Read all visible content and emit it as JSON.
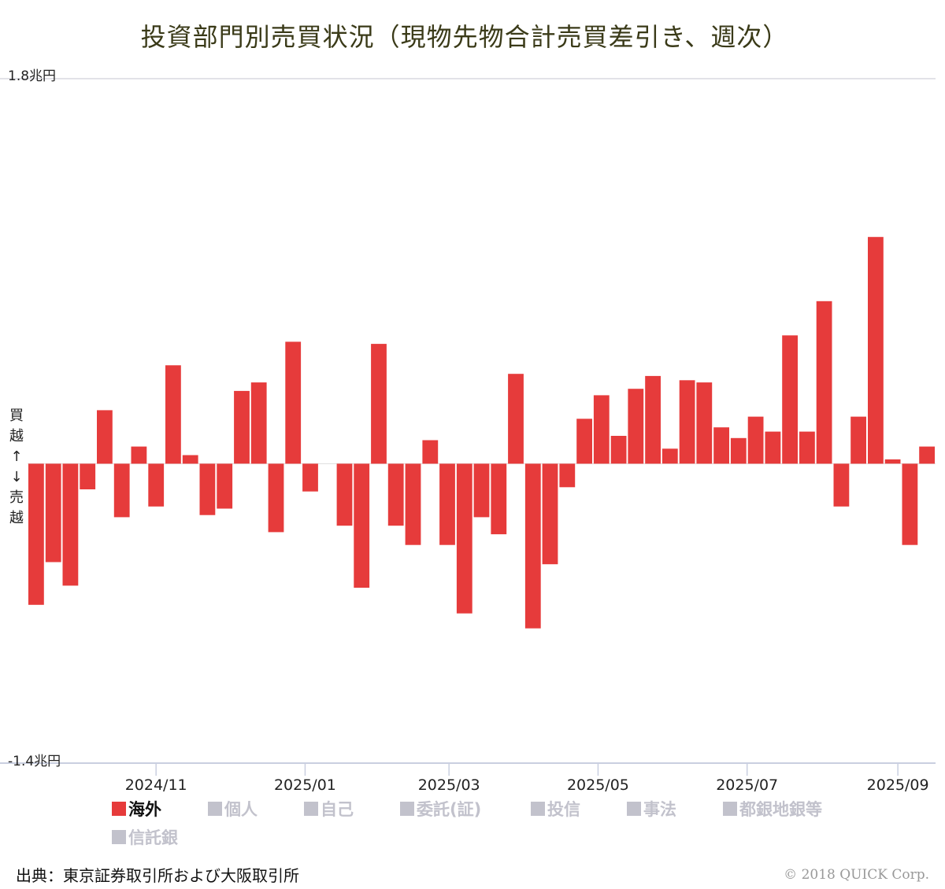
{
  "chart_data": {
    "type": "bar",
    "title": "投資部門別売買状況（現物先物合計売買差引き、週次）",
    "y_max_label": "1.8兆円",
    "y_min_label": "-1.4兆円",
    "ylim": [
      -1.4,
      1.8
    ],
    "side_label": [
      "買",
      "越",
      "↑",
      "↓",
      "売",
      "越"
    ],
    "x_ticks": [
      {
        "label": "2024/11",
        "bar_index": 7.5
      },
      {
        "label": "2025/01",
        "bar_index": 16.2
      },
      {
        "label": "2025/03",
        "bar_index": 24.6
      },
      {
        "label": "2025/05",
        "bar_index": 33.3
      },
      {
        "label": "2025/07",
        "bar_index": 42.0
      },
      {
        "label": "2025/09",
        "bar_index": 50.8
      }
    ],
    "bar_color": "#e63b3b",
    "values": [
      -0.66,
      -0.46,
      -0.57,
      -0.12,
      0.25,
      -0.25,
      0.08,
      -0.2,
      0.46,
      0.04,
      -0.24,
      -0.21,
      0.34,
      0.38,
      -0.32,
      0.57,
      -0.13,
      0.0,
      -0.29,
      -0.58,
      0.56,
      -0.29,
      -0.38,
      0.11,
      -0.38,
      -0.7,
      -0.25,
      -0.33,
      0.42,
      -0.77,
      -0.47,
      -0.11,
      0.21,
      0.32,
      0.13,
      0.35,
      0.41,
      0.07,
      0.39,
      0.38,
      0.17,
      0.12,
      0.22,
      0.15,
      0.6,
      0.15,
      0.76,
      -0.2,
      0.22,
      1.06,
      0.02,
      -0.38,
      0.08
    ]
  },
  "legend": [
    {
      "label": "海外",
      "active": true,
      "color": "#e63b3b"
    },
    {
      "label": "個人",
      "active": false,
      "color": "#c2c2cc"
    },
    {
      "label": "自己",
      "active": false,
      "color": "#c2c2cc"
    },
    {
      "label": "委託(証)",
      "active": false,
      "color": "#c2c2cc"
    },
    {
      "label": "投信",
      "active": false,
      "color": "#c2c2cc"
    },
    {
      "label": "事法",
      "active": false,
      "color": "#c2c2cc"
    },
    {
      "label": "都銀地銀等",
      "active": false,
      "color": "#c2c2cc"
    },
    {
      "label": "信託銀",
      "active": false,
      "color": "#c2c2cc"
    }
  ],
  "source": "出典：東京証券取引所および大阪取引所",
  "copyright": "© 2018 QUICK Corp."
}
